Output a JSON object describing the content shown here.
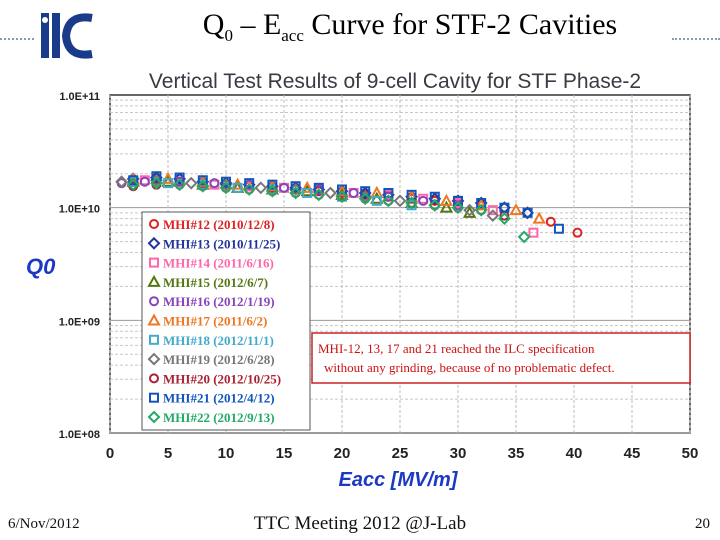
{
  "slide": {
    "title_q": "Q",
    "title_q_sub": "0",
    "title_mid": " – E",
    "title_e_sub": "acc",
    "title_rest": " Curve for STF-2 Cavities",
    "footer_date": "6/Nov/2012",
    "footer_meeting": "TTC Meeting 2012 @J-Lab",
    "footer_page": "20"
  },
  "chart_data": {
    "type": "scatter",
    "title": "Vertical Test Results of 9-cell Cavity for STF Phase-2",
    "xlabel": "Eacc [MV/m]",
    "ylabel": "Q0",
    "xlim": [
      0,
      50
    ],
    "ylim": [
      100000000.0,
      100000000000.0
    ],
    "yscale": "log",
    "xticks": [
      "0",
      "5",
      "10",
      "15",
      "20",
      "25",
      "30",
      "35",
      "40",
      "45",
      "50"
    ],
    "yticks": [
      "1.0E+08",
      "1.0E+09",
      "1.0E+10",
      "1.0E+11"
    ],
    "grid": true,
    "legend_position": "lower-left",
    "annotation": {
      "line1": "MHI-12, 13, 17 and 21 reached the ILC specification",
      "line2": "without any grinding, because of no problematic defect."
    },
    "series": [
      {
        "name": "MHI#12 (2010/12/8)",
        "marker": "circle",
        "color": "#dd2222",
        "x": [
          2,
          4,
          6,
          8,
          10,
          12,
          14,
          16,
          18,
          20,
          22,
          24,
          26,
          28,
          30,
          32,
          34,
          36,
          38,
          40.3
        ],
        "y": [
          17000000000.0,
          18000000000.0,
          17000000000.0,
          16500000000.0,
          16000000000.0,
          15500000000.0,
          15000000000.0,
          14500000000.0,
          14000000000.0,
          13500000000.0,
          13000000000.0,
          12500000000.0,
          12000000000.0,
          11500000000.0,
          11000000000.0,
          10500000000.0,
          10000000000.0,
          9000000000.0,
          7500000000.0,
          6000000000.0
        ]
      },
      {
        "name": "MHI#13 (2010/11/25)",
        "marker": "diamond",
        "color": "#223399",
        "x": [
          2,
          4,
          6,
          8,
          10,
          12,
          14,
          16,
          18,
          20,
          22,
          24,
          26,
          28,
          30,
          32,
          34,
          36
        ],
        "y": [
          18000000000.0,
          18500000000.0,
          18000000000.0,
          17000000000.0,
          16500000000.0,
          16000000000.0,
          15500000000.0,
          15000000000.0,
          14500000000.0,
          14000000000.0,
          13500000000.0,
          13000000000.0,
          12500000000.0,
          12000000000.0,
          11500000000.0,
          11000000000.0,
          10000000000.0,
          9000000000.0
        ]
      },
      {
        "name": "MHI#14 (2011/6/16)",
        "marker": "square",
        "color": "#ff66aa",
        "x": [
          3,
          6,
          9,
          12,
          15,
          18,
          21,
          24,
          27,
          30,
          33,
          36.5
        ],
        "y": [
          17500000000.0,
          17000000000.0,
          16000000000.0,
          15500000000.0,
          15000000000.0,
          14500000000.0,
          13500000000.0,
          13000000000.0,
          12000000000.0,
          11000000000.0,
          9500000000.0,
          6000000000.0
        ]
      },
      {
        "name": "MHI#15 (2012/6/7)",
        "marker": "triangle",
        "color": "#557711",
        "x": [
          2,
          5,
          8,
          11,
          14,
          17,
          20,
          23,
          26,
          29,
          31
        ],
        "y": [
          17000000000.0,
          17000000000.0,
          16000000000.0,
          15000000000.0,
          14500000000.0,
          14000000000.0,
          13000000000.0,
          12000000000.0,
          11000000000.0,
          10000000000.0,
          9000000000.0
        ]
      },
      {
        "name": "MHI#16 (2012/1/19)",
        "marker": "circle",
        "color": "#8844bb",
        "x": [
          1,
          3,
          6,
          9,
          12,
          15,
          18,
          21,
          24,
          27,
          30
        ],
        "y": [
          16500000000.0,
          17000000000.0,
          17000000000.0,
          16500000000.0,
          16000000000.0,
          15000000000.0,
          14500000000.0,
          13500000000.0,
          12500000000.0,
          11500000000.0,
          10500000000.0
        ]
      },
      {
        "name": "MHI#17 (2011/6/2)",
        "marker": "triangle",
        "color": "#ee7722",
        "x": [
          2,
          5,
          8,
          11,
          14,
          17,
          20,
          23,
          26,
          29,
          32,
          35,
          37
        ],
        "y": [
          18000000000.0,
          18000000000.0,
          17000000000.0,
          16000000000.0,
          15500000000.0,
          15000000000.0,
          14000000000.0,
          13500000000.0,
          12500000000.0,
          11500000000.0,
          10500000000.0,
          9500000000.0,
          8000000000.0
        ]
      },
      {
        "name": "MHI#18 (2012/11/1)",
        "marker": "square",
        "color": "#44aacc",
        "x": [
          2,
          5,
          8,
          11,
          14,
          17,
          20,
          23,
          26
        ],
        "y": [
          17000000000.0,
          16500000000.0,
          16000000000.0,
          15000000000.0,
          14500000000.0,
          13500000000.0,
          12500000000.0,
          11500000000.0,
          10500000000.0
        ]
      },
      {
        "name": "MHI#19 (2012/6/28)",
        "marker": "diamond",
        "color": "#777777",
        "x": [
          1,
          4,
          7,
          10,
          13,
          16,
          19,
          22,
          25,
          28,
          31,
          33
        ],
        "y": [
          17000000000.0,
          17500000000.0,
          16500000000.0,
          16000000000.0,
          15000000000.0,
          14500000000.0,
          13500000000.0,
          12500000000.0,
          11500000000.0,
          10500000000.0,
          9500000000.0,
          8500000000.0
        ]
      },
      {
        "name": "MHI#20 (2012/10/25)",
        "marker": "circle",
        "color": "#aa2233",
        "x": [
          2,
          4,
          6,
          8,
          10,
          12,
          14,
          16,
          18,
          20,
          22,
          24,
          26,
          28,
          30,
          32,
          34
        ],
        "y": [
          15500000000.0,
          16000000000.0,
          16000000000.0,
          15500000000.0,
          15000000000.0,
          14500000000.0,
          14000000000.0,
          13500000000.0,
          13000000000.0,
          12500000000.0,
          12000000000.0,
          11500000000.0,
          11000000000.0,
          10500000000.0,
          10000000000.0,
          9500000000.0,
          8500000000.0
        ]
      },
      {
        "name": "MHI#21 (2012/4/12)",
        "marker": "square",
        "color": "#1155bb",
        "x": [
          2,
          4,
          6,
          8,
          10,
          12,
          14,
          16,
          18,
          20,
          22,
          24,
          26,
          28,
          30,
          32,
          34,
          36,
          38.7
        ],
        "y": [
          17500000000.0,
          19000000000.0,
          18500000000.0,
          17500000000.0,
          17000000000.0,
          16500000000.0,
          16000000000.0,
          15500000000.0,
          15000000000.0,
          14500000000.0,
          14000000000.0,
          13500000000.0,
          13000000000.0,
          12500000000.0,
          11500000000.0,
          11000000000.0,
          10000000000.0,
          9000000000.0,
          6500000000.0
        ]
      },
      {
        "name": "MHI#22 (2012/9/13)",
        "marker": "diamond",
        "color": "#22aa66",
        "x": [
          2,
          4,
          6,
          8,
          10,
          12,
          14,
          16,
          18,
          20,
          22,
          24,
          26,
          28,
          30,
          32,
          34,
          35.7
        ],
        "y": [
          16000000000.0,
          16500000000.0,
          16000000000.0,
          15500000000.0,
          15000000000.0,
          14500000000.0,
          14000000000.0,
          13500000000.0,
          13000000000.0,
          12500000000.0,
          12000000000.0,
          11500000000.0,
          11000000000.0,
          10500000000.0,
          10000000000.0,
          9500000000.0,
          8000000000.0,
          5500000000.0
        ]
      }
    ]
  }
}
